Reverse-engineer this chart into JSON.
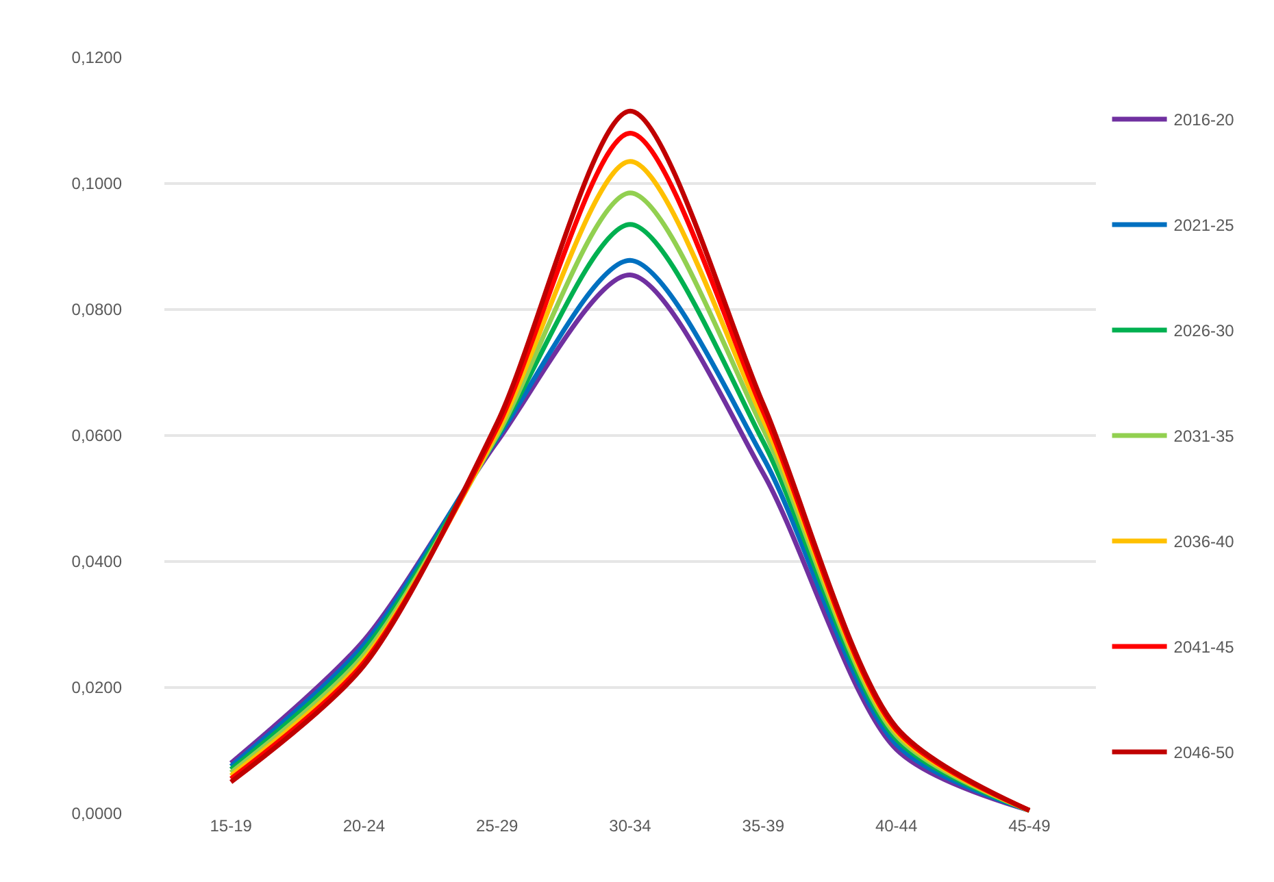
{
  "chart_data": {
    "type": "line",
    "categories": [
      "15-19",
      "20-24",
      "25-29",
      "30-34",
      "35-39",
      "40-44",
      "45-49"
    ],
    "series": [
      {
        "name": "2016-20",
        "color": "#7030a0",
        "values": [
          0.008,
          0.0275,
          0.059,
          0.0855,
          0.054,
          0.0102,
          0.0005
        ]
      },
      {
        "name": "2021-25",
        "color": "#0070c0",
        "values": [
          0.0075,
          0.0268,
          0.0595,
          0.0878,
          0.0565,
          0.011,
          0.0005
        ]
      },
      {
        "name": "2026-30",
        "color": "#00b050",
        "values": [
          0.007,
          0.026,
          0.0598,
          0.0935,
          0.059,
          0.0118,
          0.0005
        ]
      },
      {
        "name": "2031-35",
        "color": "#92d050",
        "values": [
          0.0065,
          0.0252,
          0.06,
          0.0985,
          0.061,
          0.0124,
          0.0005
        ]
      },
      {
        "name": "2036-40",
        "color": "#ffc000",
        "values": [
          0.006,
          0.0245,
          0.0605,
          0.1035,
          0.0625,
          0.0129,
          0.0005
        ]
      },
      {
        "name": "2041-45",
        "color": "#ff0000",
        "values": [
          0.0055,
          0.024,
          0.0612,
          0.108,
          0.0638,
          0.0133,
          0.0005
        ]
      },
      {
        "name": "2046-50",
        "color": "#c00000",
        "values": [
          0.005,
          0.0235,
          0.062,
          0.1115,
          0.065,
          0.0137,
          0.0005
        ]
      }
    ],
    "ylim": [
      0,
      0.12
    ],
    "yticks": [
      {
        "value": 0,
        "label": "0,0000"
      },
      {
        "value": 0.02,
        "label": "0,0200"
      },
      {
        "value": 0.04,
        "label": "0,0400"
      },
      {
        "value": 0.06,
        "label": "0,0600"
      },
      {
        "value": 0.08,
        "label": "0,0800"
      },
      {
        "value": 0.1,
        "label": "0,1000"
      },
      {
        "value": 0.12,
        "label": "0,1200"
      }
    ],
    "grid": "y",
    "legend": "right",
    "marker": "none",
    "line_style": "solid"
  }
}
